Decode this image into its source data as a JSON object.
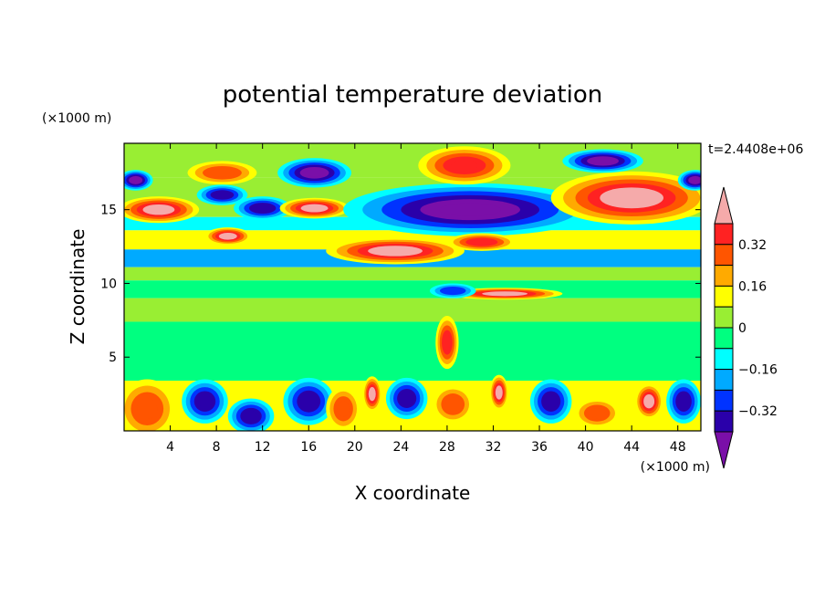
{
  "chart_data": {
    "type": "heatmap",
    "title": "potential temperature deviation",
    "xlabel": "X coordinate",
    "ylabel": "Z coordinate",
    "x_unit": "(×1000 m)",
    "y_unit": "(×1000 m)",
    "time_label": "t=2.4408e+06",
    "xlim": [
      0,
      50
    ],
    "ylim": [
      0,
      19.5
    ],
    "x_ticks": [
      4,
      8,
      12,
      16,
      20,
      24,
      28,
      32,
      36,
      40,
      44,
      48
    ],
    "y_ticks": [
      5,
      10,
      15
    ],
    "x_tick_labels": [
      "4",
      "8",
      "12",
      "16",
      "20",
      "24",
      "28",
      "32",
      "36",
      "40",
      "44",
      "48"
    ],
    "y_tick_labels": [
      "5",
      "10",
      "15"
    ],
    "colorbar": {
      "levels": [
        -0.4,
        -0.32,
        -0.24,
        -0.16,
        -0.08,
        0,
        0.08,
        0.16,
        0.24,
        0.32,
        0.4
      ],
      "labeled_levels": [
        0.32,
        0.16,
        0,
        -0.16,
        -0.32
      ],
      "labels": [
        "0.32",
        "0.16",
        "0",
        "−0.16",
        "−0.32"
      ],
      "colors": [
        "#7a0fa8",
        "#2a00aa",
        "#0033ff",
        "#00aaff",
        "#00ffff",
        "#00ff80",
        "#99ee33",
        "#ffff00",
        "#ffaa00",
        "#ff5500",
        "#ff2222",
        "#f5aaaa"
      ],
      "extend": "both"
    },
    "bands": [
      {
        "z": [
          17.2,
          19.5
        ],
        "theta": 0.02
      },
      {
        "z": [
          14.5,
          17.2
        ],
        "theta": 0.05
      },
      {
        "z": [
          13.6,
          14.5
        ],
        "theta": -0.12
      },
      {
        "z": [
          12.3,
          13.6
        ],
        "theta": 0.1
      },
      {
        "z": [
          11.1,
          12.3
        ],
        "theta": -0.2
      },
      {
        "z": [
          10.2,
          11.1
        ],
        "theta": 0.05
      },
      {
        "z": [
          9.0,
          10.2
        ],
        "theta": -0.05
      },
      {
        "z": [
          7.4,
          9.0
        ],
        "theta": 0.04
      },
      {
        "z": [
          3.4,
          7.4
        ],
        "theta": -0.02
      },
      {
        "z": [
          0,
          3.4
        ],
        "theta": 0.1
      }
    ],
    "features": [
      {
        "x": 1,
        "z": 17.0,
        "rx": 1.5,
        "rz": 0.7,
        "theta": -0.45
      },
      {
        "x": 3,
        "z": 15.0,
        "rx": 3.5,
        "rz": 0.9,
        "theta": 0.45
      },
      {
        "x": 8.5,
        "z": 17.5,
        "rx": 3,
        "rz": 0.8,
        "theta": 0.3
      },
      {
        "x": 8.5,
        "z": 16.0,
        "rx": 2.2,
        "rz": 0.7,
        "theta": -0.4
      },
      {
        "x": 12,
        "z": 15.1,
        "rx": 2.5,
        "rz": 0.8,
        "theta": -0.4
      },
      {
        "x": 16.5,
        "z": 17.5,
        "rx": 3.2,
        "rz": 1.0,
        "theta": -0.45
      },
      {
        "x": 16.5,
        "z": 15.1,
        "rx": 3,
        "rz": 0.7,
        "theta": 0.45
      },
      {
        "x": 9,
        "z": 13.2,
        "rx": 2,
        "rz": 0.6,
        "theta": 0.4
      },
      {
        "x": 30,
        "z": 15.0,
        "rx": 11,
        "rz": 1.8,
        "theta": -0.45
      },
      {
        "x": 29.5,
        "z": 18.0,
        "rx": 4,
        "rz": 1.3,
        "theta": 0.32
      },
      {
        "x": 44,
        "z": 15.8,
        "rx": 7,
        "rz": 1.8,
        "theta": 0.45
      },
      {
        "x": 41.5,
        "z": 18.3,
        "rx": 3.5,
        "rz": 0.8,
        "theta": -0.45
      },
      {
        "x": 49.5,
        "z": 17.0,
        "rx": 1.5,
        "rz": 0.7,
        "theta": -0.45
      },
      {
        "x": 23.5,
        "z": 12.2,
        "rx": 6,
        "rz": 0.9,
        "theta": 0.45
      },
      {
        "x": 31,
        "z": 12.8,
        "rx": 3,
        "rz": 0.6,
        "theta": 0.38
      },
      {
        "x": 33,
        "z": 9.3,
        "rx": 5,
        "rz": 0.4,
        "theta": 0.45
      },
      {
        "x": 28.5,
        "z": 9.5,
        "rx": 2,
        "rz": 0.5,
        "theta": -0.3
      },
      {
        "x": 28,
        "z": 6.0,
        "rx": 1.0,
        "rz": 1.8,
        "theta": 0.35
      },
      {
        "x": 2,
        "z": 1.5,
        "rx": 2.5,
        "rz": 2,
        "theta": 0.3
      },
      {
        "x": 7,
        "z": 2.0,
        "rx": 2,
        "rz": 1.5,
        "theta": -0.35
      },
      {
        "x": 11,
        "z": 1.0,
        "rx": 2,
        "rz": 1.2,
        "theta": -0.4
      },
      {
        "x": 16,
        "z": 2.0,
        "rx": 2.2,
        "rz": 1.6,
        "theta": -0.4
      },
      {
        "x": 19,
        "z": 1.5,
        "rx": 1.5,
        "rz": 1.5,
        "theta": 0.3
      },
      {
        "x": 21.5,
        "z": 2.5,
        "rx": 0.8,
        "rz": 1.2,
        "theta": 0.45
      },
      {
        "x": 24.5,
        "z": 2.2,
        "rx": 1.8,
        "rz": 1.4,
        "theta": -0.4
      },
      {
        "x": 28.5,
        "z": 1.8,
        "rx": 1.8,
        "rz": 1.3,
        "theta": 0.28
      },
      {
        "x": 32.5,
        "z": 2.6,
        "rx": 0.8,
        "rz": 1.2,
        "theta": 0.45
      },
      {
        "x": 37,
        "z": 2.0,
        "rx": 1.8,
        "rz": 1.5,
        "theta": -0.4
      },
      {
        "x": 41,
        "z": 1.2,
        "rx": 2,
        "rz": 1.0,
        "theta": 0.3
      },
      {
        "x": 45.5,
        "z": 2.0,
        "rx": 1.2,
        "rz": 1.2,
        "theta": 0.45
      },
      {
        "x": 48.5,
        "z": 2.0,
        "rx": 1.5,
        "rz": 1.5,
        "theta": -0.35
      }
    ]
  }
}
